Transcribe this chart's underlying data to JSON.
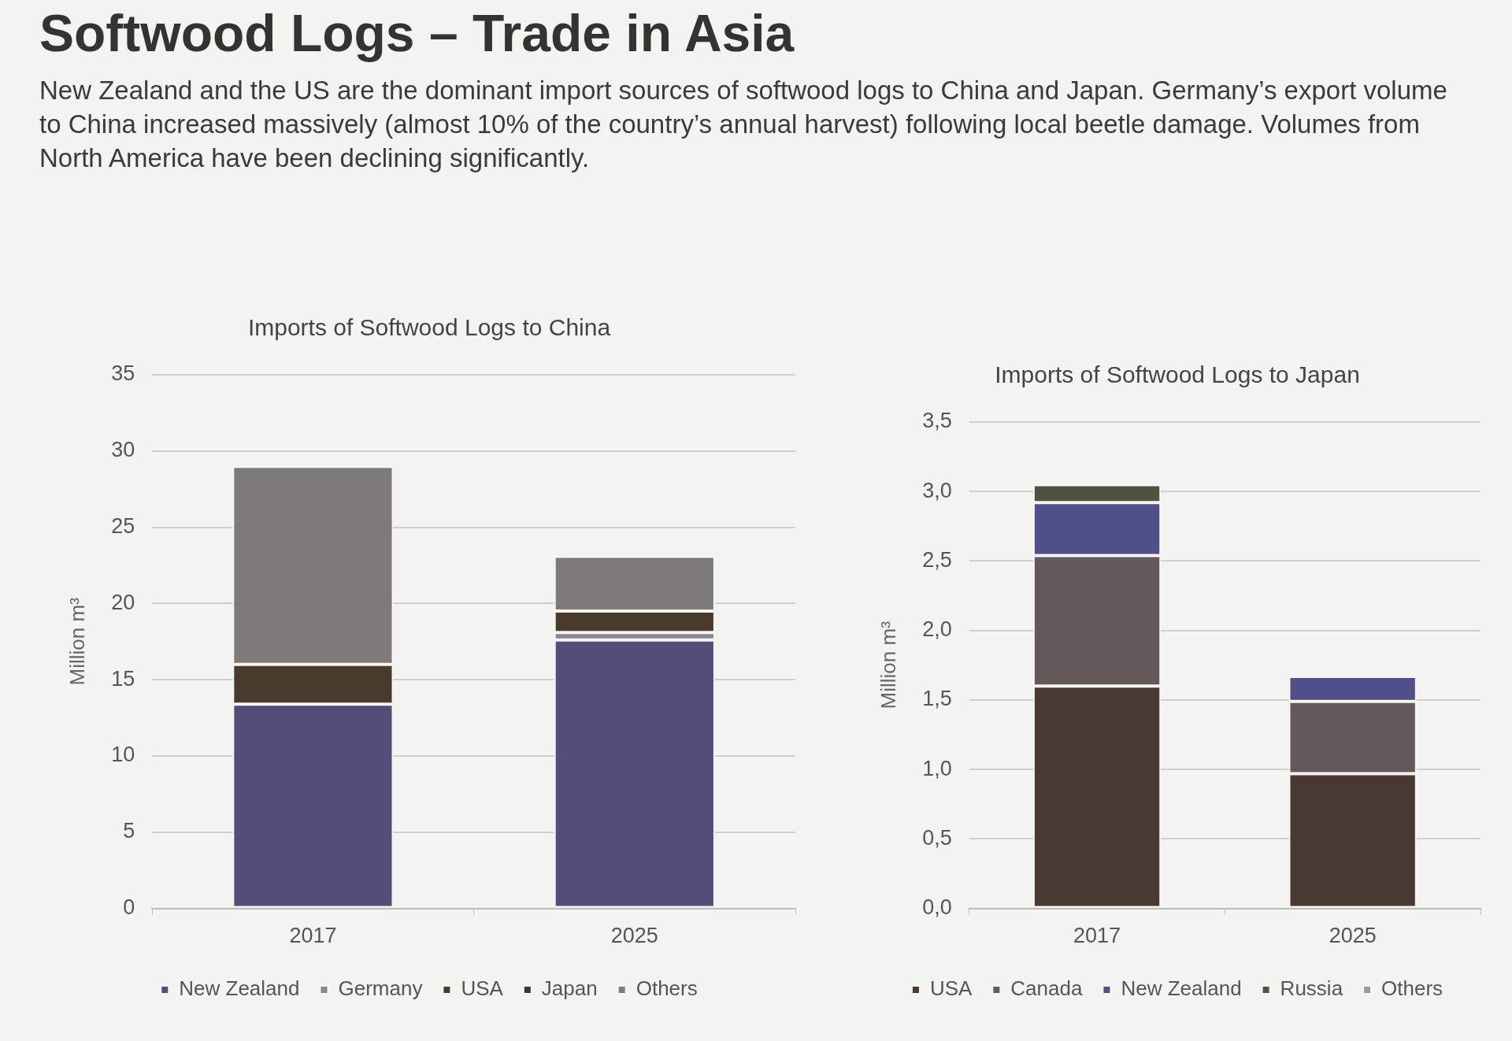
{
  "chart_data": [
    {
      "type": "other",
      "title": "Softwood Logs – Trade in Asia",
      "subtitle": "New Zealand and the US are the dominant import sources of softwood logs to China and Japan. Germany’s export volume to China increased massively (almost 10% of the country’s annual harvest) following local beetle damage. Volumes from North America have been declining significantly."
    },
    {
      "type": "bar",
      "title": "Imports of Softwood Logs to China",
      "ylabel": "Million m³",
      "categories": [
        "2017",
        "2025"
      ],
      "stacked": true,
      "series": [
        {
          "name": "New Zealand",
          "color": "#534d7a",
          "values": [
            13.4,
            17.6
          ]
        },
        {
          "name": "Germany",
          "color": "#8a8794",
          "values": [
            0,
            0.5
          ]
        },
        {
          "name": "USA",
          "color": "#4a3a2c",
          "values": [
            2.6,
            1.4
          ]
        },
        {
          "name": "Japan",
          "color": "#3a3634",
          "values": [
            0,
            0
          ]
        },
        {
          "name": "Others",
          "color": "#7e7a7a",
          "values": [
            13.0,
            3.6
          ]
        }
      ],
      "ylim": [
        0,
        35
      ],
      "yticks": [
        0,
        5,
        10,
        15,
        20,
        25,
        30,
        35
      ],
      "grid": "y",
      "legend": "bottom"
    },
    {
      "type": "bar",
      "title": "Imports of Softwood Logs to Japan",
      "ylabel": "Million m³",
      "categories": [
        "2017",
        "2025"
      ],
      "stacked": true,
      "series": [
        {
          "name": "USA",
          "color": "#4a3832",
          "values": [
            1.6,
            0.97
          ]
        },
        {
          "name": "Canada",
          "color": "#65585a",
          "values": [
            0.94,
            0.52
          ]
        },
        {
          "name": "New Zealand",
          "color": "#4f4f8a",
          "values": [
            0.38,
            0.18
          ]
        },
        {
          "name": "Russia",
          "color": "#4f5240",
          "values": [
            0.13,
            0
          ]
        },
        {
          "name": "Others",
          "color": "#9a9a9a",
          "values": [
            0,
            0
          ]
        }
      ],
      "ylim": [
        0,
        3.5
      ],
      "yticks": [
        {
          "value": 0,
          "label": "0,0"
        },
        {
          "value": 0.5,
          "label": "0,5"
        },
        {
          "value": 1,
          "label": "1,0"
        },
        {
          "value": 1.5,
          "label": "1,5"
        },
        {
          "value": 2,
          "label": "2,0"
        },
        {
          "value": 2.5,
          "label": "2,5"
        },
        {
          "value": 3,
          "label": "3,0"
        },
        {
          "value": 3.5,
          "label": "3,5"
        }
      ],
      "grid": "y",
      "legend": "bottom"
    }
  ]
}
